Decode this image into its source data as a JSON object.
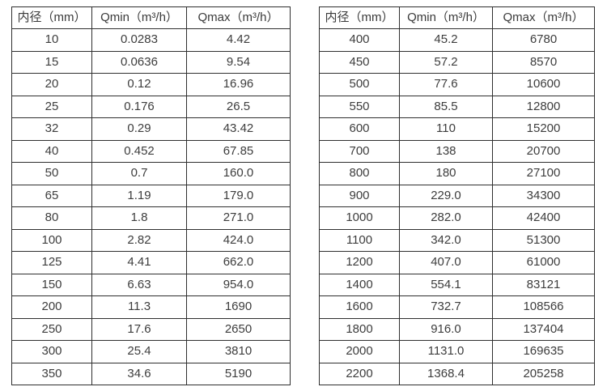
{
  "colors": {
    "background": "#ffffff",
    "border": "#2f2f2f",
    "text": "#3d3d3d"
  },
  "tables": [
    {
      "name": "flow-rate-table-small-diameters",
      "headers": [
        "内径（mm）",
        "Qmin（m³/h）",
        "Qmax（m³/h）"
      ],
      "rows": [
        [
          "10",
          "0.0283",
          "4.42"
        ],
        [
          "15",
          "0.0636",
          "9.54"
        ],
        [
          "20",
          "0.12",
          "16.96"
        ],
        [
          "25",
          "0.176",
          "26.5"
        ],
        [
          "32",
          "0.29",
          "43.42"
        ],
        [
          "40",
          "0.452",
          "67.85"
        ],
        [
          "50",
          "0.7",
          "160.0"
        ],
        [
          "65",
          "1.19",
          "179.0"
        ],
        [
          "80",
          "1.8",
          "271.0"
        ],
        [
          "100",
          "2.82",
          "424.0"
        ],
        [
          "125",
          "4.41",
          "662.0"
        ],
        [
          "150",
          "6.63",
          "954.0"
        ],
        [
          "200",
          "11.3",
          "1690"
        ],
        [
          "250",
          "17.6",
          "2650"
        ],
        [
          "300",
          "25.4",
          "3810"
        ],
        [
          "350",
          "34.6",
          "5190"
        ]
      ]
    },
    {
      "name": "flow-rate-table-large-diameters",
      "headers": [
        "内径（mm）",
        "Qmin（m³/h）",
        "Qmax（m³/h）"
      ],
      "rows": [
        [
          "400",
          "45.2",
          "6780"
        ],
        [
          "450",
          "57.2",
          "8570"
        ],
        [
          "500",
          "77.6",
          "10600"
        ],
        [
          "550",
          "85.5",
          "12800"
        ],
        [
          "600",
          "110",
          "15200"
        ],
        [
          "700",
          "138",
          "20700"
        ],
        [
          "800",
          "180",
          "27100"
        ],
        [
          "900",
          "229.0",
          "34300"
        ],
        [
          "1000",
          "282.0",
          "42400"
        ],
        [
          "1100",
          "342.0",
          "51300"
        ],
        [
          "1200",
          "407.0",
          "61000"
        ],
        [
          "1400",
          "554.1",
          "83121"
        ],
        [
          "1600",
          "732.7",
          "108566"
        ],
        [
          "1800",
          "916.0",
          "137404"
        ],
        [
          "2000",
          "1131.0",
          "169635"
        ],
        [
          "2200",
          "1368.4",
          "205258"
        ]
      ]
    }
  ]
}
